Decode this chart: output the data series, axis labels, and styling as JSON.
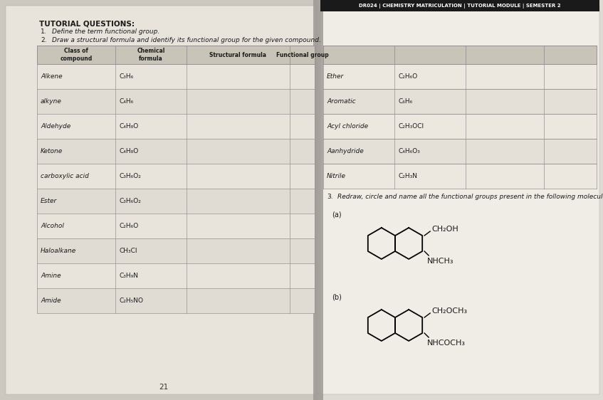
{
  "header_text": "DR024 | CHEMISTRY MATRICULATION | TUTORIAL MODULE | SEMESTER 2",
  "header_bg": "#1a1a1a",
  "header_color": "#ffffff",
  "page_bg": "#b8b0a8",
  "left_bg": "#ccc8c0",
  "right_bg": "#dedad4",
  "paper_left": "#e8e4dc",
  "paper_right": "#f0ece6",
  "title": "TUTORIAL QUESTIONS:",
  "q1_num": "1.",
  "q1_text": "Define the term functional group.",
  "q2_num": "2.",
  "q2_text": "Draw a structural formula and identify its functional group for the given compound.",
  "q3_num": "3.",
  "q3_text": "Redraw, circle and name all the functional groups present in the following molecules:",
  "table_headers": [
    "Class of\ncompound",
    "Chemical\nformula",
    "Structural formula",
    "Functional group"
  ],
  "table_left_rows": [
    [
      "Alkene",
      "C₃H₆"
    ],
    [
      "alkyne",
      "C₄H₆"
    ],
    [
      "Aldehyde",
      "C₄H₈O"
    ],
    [
      "Ketone",
      "C₄H₈O"
    ],
    [
      "carboxylic acid",
      "C₃H₆O₂"
    ],
    [
      "Ester",
      "C₃H₆O₂"
    ],
    [
      "Alcohol",
      "C₂H₆O"
    ],
    [
      "Haloalkane",
      "CH₃Cl"
    ],
    [
      "Amine",
      "C₃H₉N"
    ],
    [
      "Amide",
      "C₂H₅NO"
    ]
  ],
  "table_right_rows": [
    [
      "Ether",
      "C₂H₆O"
    ],
    [
      "Aromatic",
      "C₆H₆"
    ],
    [
      "Acyl chloride",
      "C₂H₃OCl"
    ],
    [
      "Aanhydride",
      "C₄H₆O₃"
    ],
    [
      "Nitrile",
      "C₂H₃N"
    ]
  ],
  "page_number": "21",
  "mol_a_label": "(a)",
  "mol_b_label": "(b)",
  "mol_a_group1": "CH₂OH",
  "mol_a_group2": "NHCH₃",
  "mol_b_group1": "CH₂OCH₃",
  "mol_b_group2": "NHCOCH₃",
  "header_col": "#c8c4b8",
  "line_col": "#999090",
  "text_dark": "#1a1a1a",
  "text_mid": "#333333"
}
